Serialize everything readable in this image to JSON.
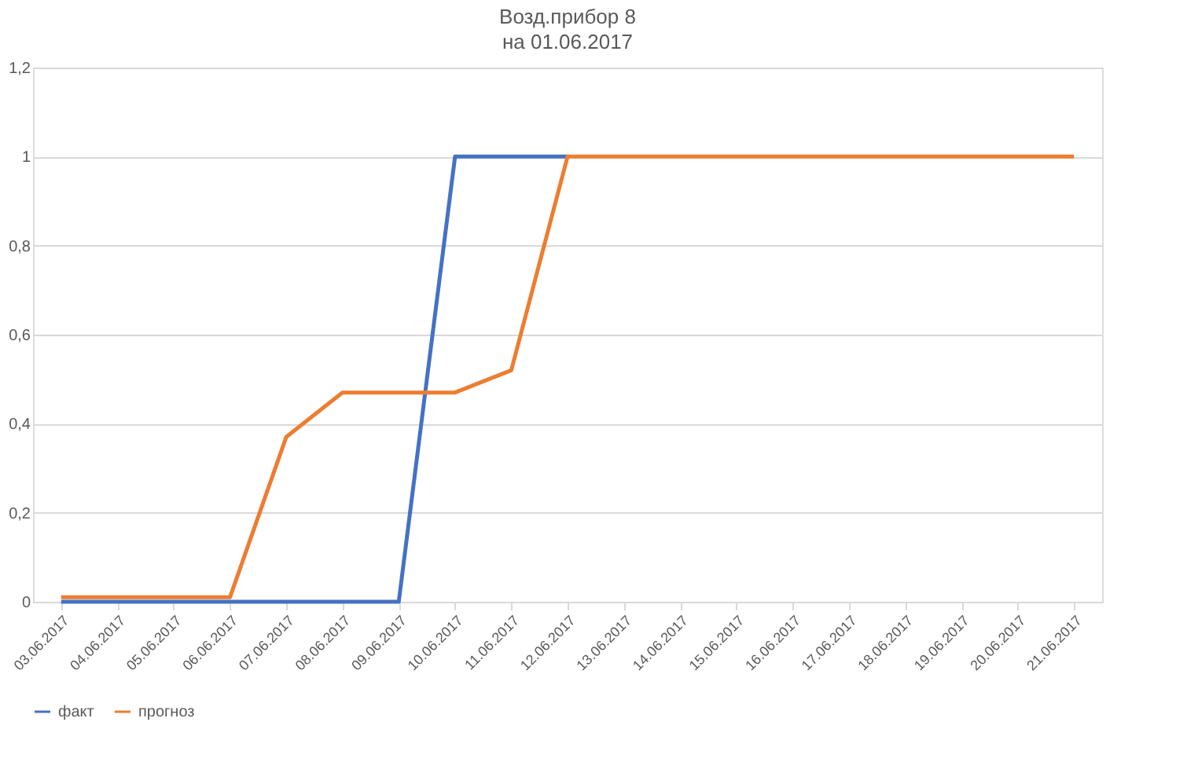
{
  "chart_data": {
    "type": "line",
    "title": "Возд.прибор 8",
    "subtitle": "на 01.06.2017",
    "categories": [
      "03.06.2017",
      "04.06.2017",
      "05.06.2017",
      "06.06.2017",
      "07.06.2017",
      "08.06.2017",
      "09.06.2017",
      "10.06.2017",
      "11.06.2017",
      "12.06.2017",
      "13.06.2017",
      "14.06.2017",
      "15.06.2017",
      "16.06.2017",
      "17.06.2017",
      "18.06.2017",
      "19.06.2017",
      "20.06.2017",
      "21.06.2017"
    ],
    "series": [
      {
        "name": "факт",
        "color": "#4472c4",
        "values": [
          0,
          0,
          0,
          0,
          0,
          0,
          0,
          1,
          1,
          1,
          null,
          null,
          null,
          null,
          null,
          null,
          null,
          null,
          null
        ]
      },
      {
        "name": "прогноз",
        "color": "#ed7d31",
        "values": [
          0.01,
          0.01,
          0.01,
          0.01,
          0.37,
          0.47,
          0.47,
          0.47,
          0.52,
          1,
          1,
          1,
          1,
          1,
          1,
          1,
          1,
          1,
          1
        ]
      }
    ],
    "ylim": [
      0,
      1.2
    ],
    "yticks": [
      0,
      {
        "value": 0.2,
        "label": "0,2"
      },
      {
        "value": 0.4,
        "label": "0,4"
      },
      {
        "value": 0.6,
        "label": "0,6"
      },
      {
        "value": 0.8,
        "label": "0,8"
      },
      1,
      {
        "value": 1.2,
        "label": "1,2"
      }
    ],
    "grid": "y",
    "legend": "bottom",
    "marker": "none",
    "line_style": "solid"
  }
}
